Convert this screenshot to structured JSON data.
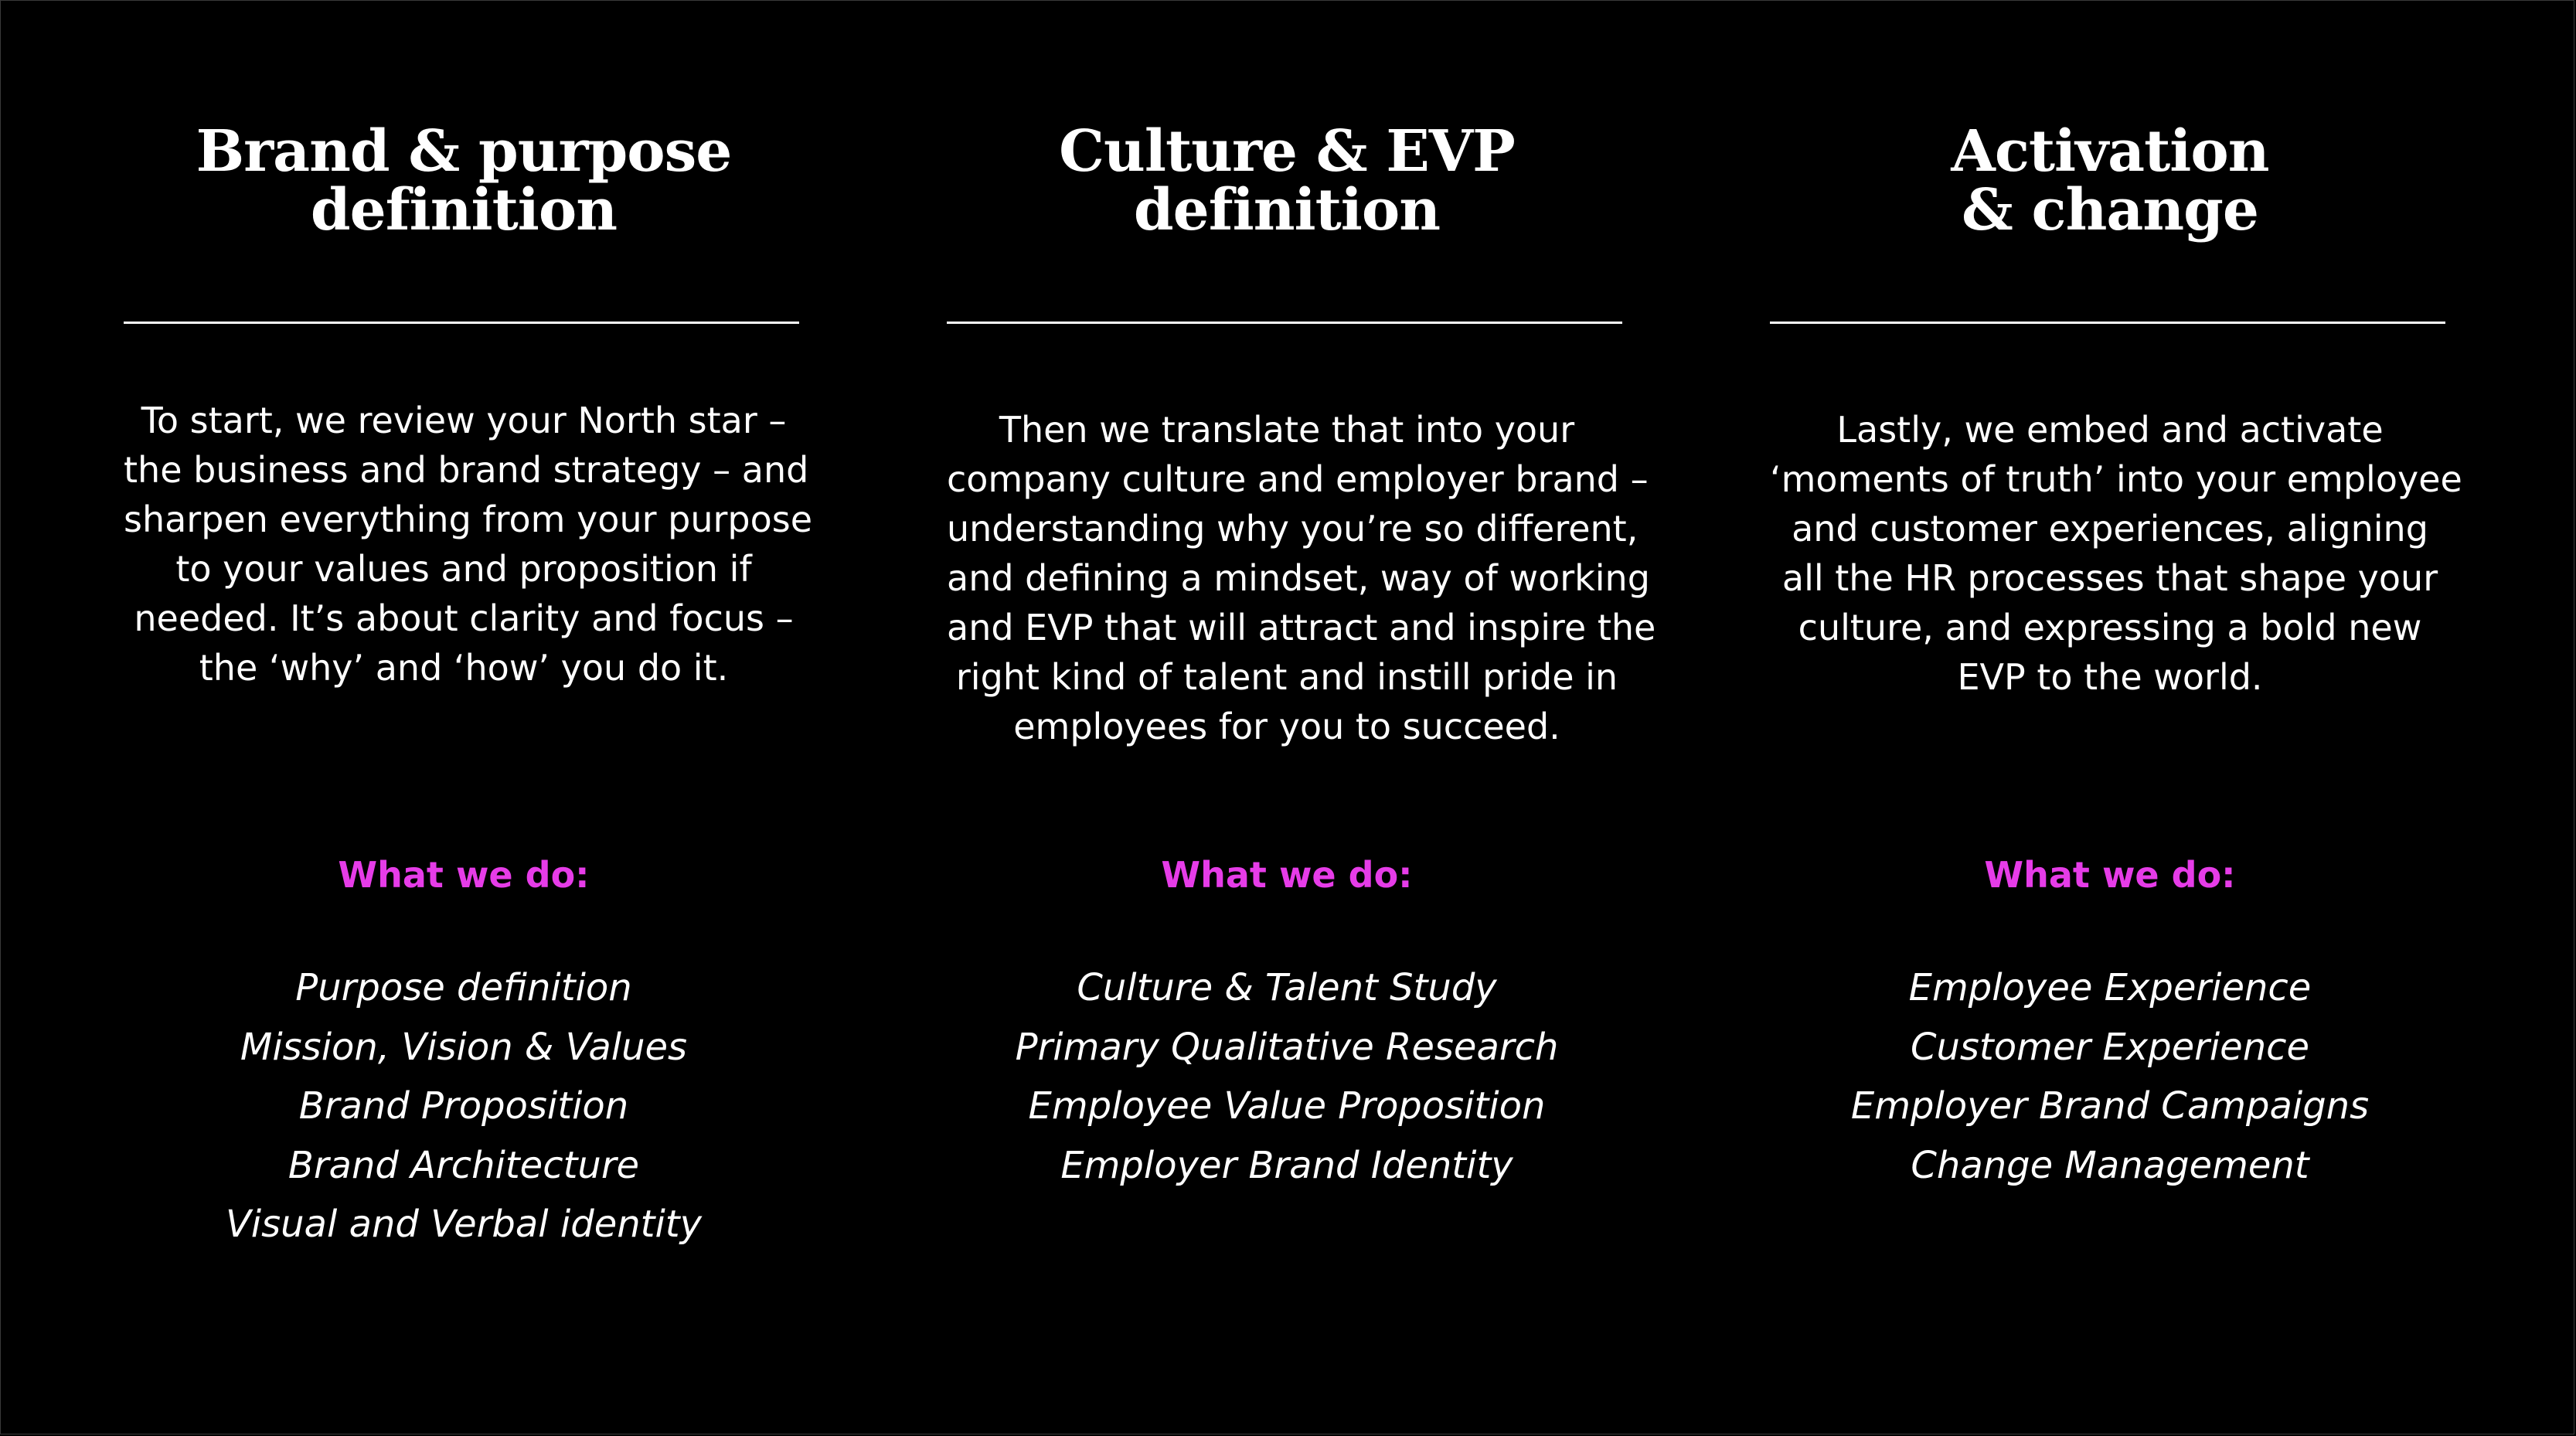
{
  "colors": {
    "background": "#000000",
    "text": "#ffffff",
    "accent": "#e63ce8"
  },
  "columns": [
    {
      "title_lines": [
        "Brand & purpose",
        "definition"
      ],
      "description_lines": [
        "To start, we review your North star –",
        "the business and brand strategy – and",
        "sharpen everything from your purpose",
        "to your values and proposition if",
        "needed. It’s about clarity and focus –",
        "the ‘why’ and ‘how’ you do it."
      ],
      "what_we_do_label": "What we do:",
      "services": [
        "Purpose definition",
        "Mission, Vision & Values",
        "Brand Proposition",
        "Brand Architecture",
        "Visual and Verbal identity"
      ]
    },
    {
      "title_lines": [
        "Culture & EVP",
        "definition"
      ],
      "description_lines": [
        "Then we translate that into your",
        "company culture and employer brand –",
        "understanding why you’re so different,",
        "and defining a mindset, way of working",
        "and EVP that will attract and inspire the",
        "right kind of talent and instill pride in",
        "employees for you to succeed."
      ],
      "what_we_do_label": "What we do:",
      "services": [
        "Culture & Talent Study",
        "Primary Qualitative Research",
        "Employee Value Proposition",
        "Employer Brand Identity"
      ]
    },
    {
      "title_lines": [
        "Activation",
        "& change"
      ],
      "description_lines": [
        "Lastly, we embed and activate",
        "‘moments of truth’ into your employee",
        "and customer experiences, aligning",
        "all the HR processes that shape your",
        "culture, and expressing a bold new",
        "EVP to the world."
      ],
      "what_we_do_label": "What we do:",
      "services": [
        "Employee Experience",
        "Customer Experience",
        "Employer Brand Campaigns",
        "Change Management"
      ]
    }
  ]
}
